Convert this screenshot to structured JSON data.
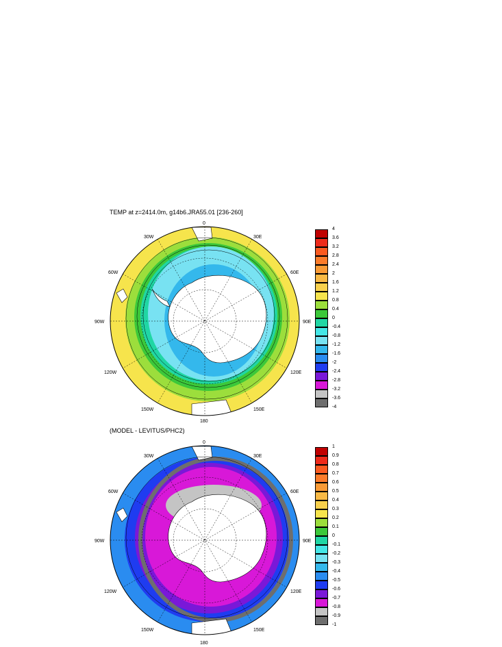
{
  "panel1": {
    "title": "TEMP at z=2414.0m, g14b6.JRA55.01 [236-260]",
    "lon_labels": {
      "top": "0",
      "bottom": "180",
      "left": "90W",
      "right": "90E",
      "ul": "30W",
      "ur": "30E",
      "ml_up": "60W",
      "mr_up": "60E",
      "ml_dn": "120W",
      "mr_dn": "120E",
      "ll": "150W",
      "lr": "150E"
    },
    "colorbar": {
      "labels": [
        "4",
        "3.6",
        "3.2",
        "2.8",
        "2.4",
        "2",
        "1.6",
        "1.2",
        "0.8",
        "0.4",
        "0",
        "-0.4",
        "-0.8",
        "-1.2",
        "-1.6",
        "-2",
        "-2.4",
        "-2.8",
        "-3.2",
        "-3.6",
        "-4"
      ],
      "colors": [
        "#c00000",
        "#ee2a1a",
        "#fa5a20",
        "#fb7b2a",
        "#f99a35",
        "#f8b945",
        "#f8d04c",
        "#f6e44c",
        "#9cde3c",
        "#3cc83a",
        "#20d6a4",
        "#44e6e6",
        "#78e2f2",
        "#34b8ec",
        "#2a8cf0",
        "#1f3cf0",
        "#7a18d8",
        "#d818d8",
        "#c4c4c4",
        "#6e6e6e"
      ]
    },
    "map_colors": {
      "coast": "#f1c232",
      "ring_outer": "#f6e44c",
      "ring_mid": "#9cde3c",
      "ring_inner": "#3cc83a",
      "band": "#20d6a4",
      "cyan": "#78e2f2",
      "blue": "#34b8ec",
      "land": "#ffffff"
    }
  },
  "panel2": {
    "title": "(MODEL - LEVITUS/PHC2)",
    "lon_labels": {
      "top": "0",
      "bottom": "180",
      "left": "90W",
      "right": "90E",
      "ul": "30W",
      "ur": "30E",
      "ml_up": "60W",
      "mr_up": "60E",
      "ml_dn": "120W",
      "mr_dn": "120E",
      "ll": "150W",
      "lr": "150E"
    },
    "colorbar": {
      "labels": [
        "1",
        "0.9",
        "0.8",
        "0.7",
        "0.6",
        "0.5",
        "0.4",
        "0.3",
        "0.2",
        "0.1",
        "0",
        "-0.1",
        "-0.2",
        "-0.3",
        "-0.4",
        "-0.5",
        "-0.6",
        "-0.7",
        "-0.8",
        "-0.9",
        "-1"
      ],
      "colors": [
        "#c00000",
        "#ee2a1a",
        "#fa5a20",
        "#fb7b2a",
        "#f99a35",
        "#f8b945",
        "#f8d04c",
        "#f6e44c",
        "#9cde3c",
        "#3cc83a",
        "#20d6a4",
        "#44e6e6",
        "#78e2f2",
        "#34b8ec",
        "#2a8cf0",
        "#1f3cf0",
        "#7a18d8",
        "#d818d8",
        "#c4c4c4",
        "#6e6e6e"
      ]
    },
    "map_colors": {
      "blue": "#2a8cf0",
      "deepblue": "#1f3cf0",
      "purple": "#7a18d8",
      "magenta": "#d818d8",
      "grey": "#6e6e6e",
      "cyan": "#44e6e6",
      "land": "#ffffff"
    }
  }
}
